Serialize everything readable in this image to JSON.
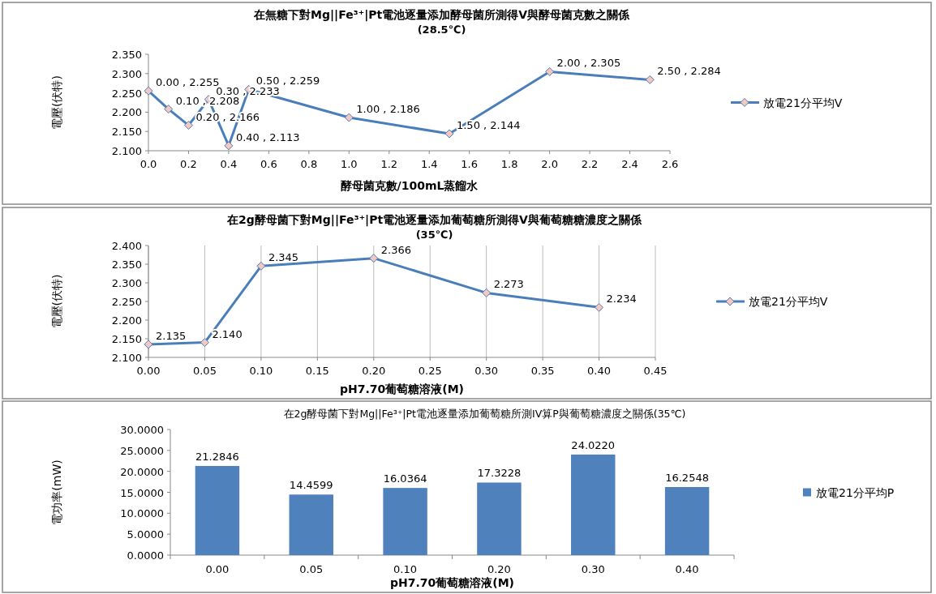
{
  "chart_data": [
    {
      "type": "line",
      "title": "在無糖下對Mg||Fe³⁺|Pt電池逐量添加酵母菌所測得V與酵母菌克數之關係",
      "subtitle": "(28.5℃)",
      "xlabel": "酵母菌克數/100mL蒸餾水",
      "ylabel": "電壓(伏特)",
      "x": [
        0,
        0.1,
        0.2,
        0.3,
        0.4,
        0.5,
        1.0,
        1.5,
        2.0,
        2.5
      ],
      "series": [
        {
          "name": "放電21分平均V",
          "color": "#4a7ebb",
          "values": [
            2.255,
            2.208,
            2.166,
            2.233,
            2.113,
            2.259,
            2.186,
            2.144,
            2.305,
            2.284
          ],
          "value_labels": [
            "0.00 , 2.255",
            "0.10 , 2.208",
            "0.20 , 2.166",
            "0.30 , 2.233",
            "0.40 , 2.113",
            "0.50 , 2.259",
            "1.00 , 2.186",
            "1.50 , 2.144",
            "2.00 , 2.305",
            "2.50 , 2.284"
          ]
        }
      ],
      "xlim": [
        0,
        2.6
      ],
      "xticks": [
        {
          "value": 0,
          "label": "0.0"
        },
        0.2,
        0.4,
        0.6,
        0.8,
        {
          "value": 1,
          "label": "1.0"
        },
        1.2,
        1.4,
        1.6,
        1.8,
        {
          "value": 2,
          "label": "2.0"
        },
        2.2,
        2.4,
        2.6
      ],
      "ylim": [
        2.1,
        2.35
      ],
      "yticks": [
        {
          "value": 2.1,
          "label": "2.100"
        },
        {
          "value": 2.15,
          "label": "2.150"
        },
        {
          "value": 2.2,
          "label": "2.200"
        },
        {
          "value": 2.25,
          "label": "2.250"
        },
        {
          "value": 2.3,
          "label": "2.300"
        },
        {
          "value": 2.35,
          "label": "2.350"
        }
      ],
      "marker": "diamond",
      "legend": "right"
    },
    {
      "type": "line",
      "title": "在2g酵母菌下對Mg||Fe³⁺|Pt電池逐量添加葡萄糖所測得V與葡萄糖糖濃度之關係",
      "subtitle": "(35℃)",
      "xlabel": "pH7.70葡萄糖溶液(M)",
      "ylabel": "電壓(伏特)",
      "x": [
        0,
        0.05,
        0.1,
        0.2,
        0.3,
        0.4
      ],
      "series": [
        {
          "name": "放電21分平均V",
          "color": "#4a7ebb",
          "values": [
            2.135,
            2.14,
            2.345,
            2.366,
            2.273,
            2.234
          ],
          "value_labels": [
            "2.135",
            "2.140",
            "2.345",
            "2.366",
            "2.273",
            "2.234"
          ]
        }
      ],
      "xlim": [
        0,
        0.45
      ],
      "xticks": [
        {
          "value": 0,
          "label": "0.00"
        },
        0.05,
        {
          "value": 0.1,
          "label": "0.10"
        },
        0.15,
        {
          "value": 0.2,
          "label": "0.20"
        },
        0.25,
        {
          "value": 0.3,
          "label": "0.30"
        },
        0.35,
        {
          "value": 0.4,
          "label": "0.40"
        },
        0.45
      ],
      "ylim": [
        2.1,
        2.4
      ],
      "yticks": [
        {
          "value": 2.1,
          "label": "2.100"
        },
        {
          "value": 2.15,
          "label": "2.150"
        },
        {
          "value": 2.2,
          "label": "2.200"
        },
        {
          "value": 2.25,
          "label": "2.250"
        },
        {
          "value": 2.3,
          "label": "2.300"
        },
        {
          "value": 2.35,
          "label": "2.350"
        },
        {
          "value": 2.4,
          "label": "2.400"
        }
      ],
      "grid": "x",
      "marker": "diamond",
      "legend": "right"
    },
    {
      "type": "bar",
      "title": "在2g酵母菌下對Mg||Fe³⁺|Pt電池逐量添加葡萄糖所測IV算P與葡萄糖濃度之關係(35℃)",
      "xlabel": "pH7.70葡萄糖溶液(M)",
      "ylabel": "電功率(mW)",
      "categories": [
        "0.00",
        "0.05",
        "0.10",
        "0.20",
        "0.30",
        "0.40"
      ],
      "series": [
        {
          "name": "放電21分平均P",
          "color": "#4f81bd",
          "values": [
            21.2846,
            14.4599,
            16.0364,
            17.3228,
            24.022,
            16.2548
          ],
          "value_labels": [
            "21.2846",
            "14.4599",
            "16.0364",
            "17.3228",
            "24.0220",
            "16.2548"
          ]
        }
      ],
      "ylim": [
        0,
        30
      ],
      "yticks": [
        {
          "value": 0,
          "label": "0.0000"
        },
        {
          "value": 5,
          "label": "5.0000"
        },
        {
          "value": 10,
          "label": "10.0000"
        },
        {
          "value": 15,
          "label": "15.0000"
        },
        {
          "value": 20,
          "label": "20.0000"
        },
        {
          "value": 25,
          "label": "25.0000"
        },
        {
          "value": 30,
          "label": "30.0000"
        }
      ],
      "legend": "right"
    }
  ]
}
